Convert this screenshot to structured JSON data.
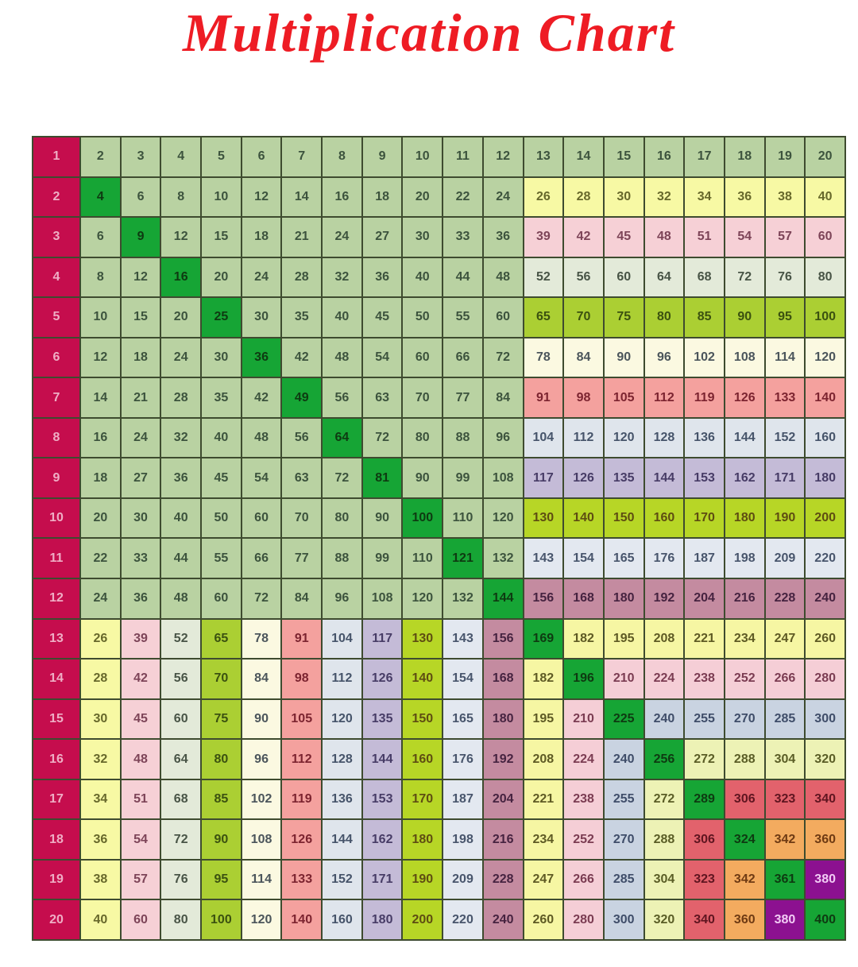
{
  "title_text": "Multiplication Chart",
  "chart_data": {
    "type": "table",
    "title": "Multiplication Chart",
    "description": "Multiplication grid; row header 1-20 in first column, products of row x column for factors 2-20",
    "col_factors": [
      2,
      3,
      4,
      5,
      6,
      7,
      8,
      9,
      10,
      11,
      12,
      13,
      14,
      15,
      16,
      17,
      18,
      19,
      20
    ],
    "rows": [
      {
        "label": 1,
        "values": [
          2,
          3,
          4,
          5,
          6,
          7,
          8,
          9,
          10,
          11,
          12,
          13,
          14,
          15,
          16,
          17,
          18,
          19,
          20
        ]
      },
      {
        "label": 2,
        "values": [
          4,
          6,
          8,
          10,
          12,
          14,
          16,
          18,
          20,
          22,
          24,
          26,
          28,
          30,
          32,
          34,
          36,
          38,
          40
        ]
      },
      {
        "label": 3,
        "values": [
          6,
          9,
          12,
          15,
          18,
          21,
          24,
          27,
          30,
          33,
          36,
          39,
          42,
          45,
          48,
          51,
          54,
          57,
          60
        ]
      },
      {
        "label": 4,
        "values": [
          8,
          12,
          16,
          20,
          24,
          28,
          32,
          36,
          40,
          44,
          48,
          52,
          56,
          60,
          64,
          68,
          72,
          76,
          80
        ]
      },
      {
        "label": 5,
        "values": [
          10,
          15,
          20,
          25,
          30,
          35,
          40,
          45,
          50,
          55,
          60,
          65,
          70,
          75,
          80,
          85,
          90,
          95,
          100
        ]
      },
      {
        "label": 6,
        "values": [
          12,
          18,
          24,
          30,
          36,
          42,
          48,
          54,
          60,
          66,
          72,
          78,
          84,
          90,
          96,
          102,
          108,
          114,
          120
        ]
      },
      {
        "label": 7,
        "values": [
          14,
          21,
          28,
          35,
          42,
          49,
          56,
          63,
          70,
          77,
          84,
          91,
          98,
          105,
          112,
          119,
          126,
          133,
          140
        ]
      },
      {
        "label": 8,
        "values": [
          16,
          24,
          32,
          40,
          48,
          56,
          64,
          72,
          80,
          88,
          96,
          104,
          112,
          120,
          128,
          136,
          144,
          152,
          160
        ]
      },
      {
        "label": 9,
        "values": [
          18,
          27,
          36,
          45,
          54,
          63,
          72,
          81,
          90,
          99,
          108,
          117,
          126,
          135,
          144,
          153,
          162,
          171,
          180
        ]
      },
      {
        "label": 10,
        "values": [
          20,
          30,
          40,
          50,
          60,
          70,
          80,
          90,
          100,
          110,
          120,
          130,
          140,
          150,
          160,
          170,
          180,
          190,
          200
        ]
      },
      {
        "label": 11,
        "values": [
          22,
          33,
          44,
          55,
          66,
          77,
          88,
          99,
          110,
          121,
          132,
          143,
          154,
          165,
          176,
          187,
          198,
          209,
          220
        ]
      },
      {
        "label": 12,
        "values": [
          24,
          36,
          48,
          60,
          72,
          84,
          96,
          108,
          120,
          132,
          144,
          156,
          168,
          180,
          192,
          204,
          216,
          228,
          240
        ]
      },
      {
        "label": 13,
        "values": [
          26,
          39,
          52,
          65,
          78,
          91,
          104,
          117,
          130,
          143,
          156,
          169,
          182,
          195,
          208,
          221,
          234,
          247,
          260
        ]
      },
      {
        "label": 14,
        "values": [
          28,
          42,
          56,
          70,
          84,
          98,
          112,
          126,
          140,
          154,
          168,
          182,
          196,
          210,
          224,
          238,
          252,
          266,
          280
        ]
      },
      {
        "label": 15,
        "values": [
          30,
          45,
          60,
          75,
          90,
          105,
          120,
          135,
          150,
          165,
          180,
          195,
          210,
          225,
          240,
          255,
          270,
          285,
          300
        ]
      },
      {
        "label": 16,
        "values": [
          32,
          48,
          64,
          80,
          96,
          112,
          128,
          144,
          160,
          176,
          192,
          208,
          224,
          240,
          256,
          272,
          288,
          304,
          320
        ]
      },
      {
        "label": 17,
        "values": [
          34,
          51,
          68,
          85,
          102,
          119,
          136,
          153,
          170,
          187,
          204,
          221,
          238,
          255,
          272,
          289,
          306,
          323,
          340
        ]
      },
      {
        "label": 18,
        "values": [
          36,
          54,
          72,
          90,
          108,
          126,
          144,
          162,
          180,
          198,
          216,
          234,
          252,
          270,
          288,
          306,
          324,
          342,
          360
        ]
      },
      {
        "label": 19,
        "values": [
          38,
          57,
          76,
          95,
          114,
          133,
          152,
          171,
          190,
          209,
          228,
          247,
          266,
          285,
          304,
          323,
          342,
          361,
          380
        ]
      },
      {
        "label": 20,
        "values": [
          40,
          60,
          80,
          100,
          120,
          140,
          160,
          180,
          200,
          220,
          240,
          260,
          280,
          300,
          320,
          340,
          360,
          380,
          400
        ]
      }
    ]
  },
  "colors": {
    "page_bg": "#ffffff",
    "title": "#ee1c24",
    "grid_border": "#3e4b2f",
    "header_bg": "#c50d4d",
    "header_text": "#efaec5",
    "sage_bg": "#b9d2a2",
    "sage_text": "#3c533d",
    "diagonal_bg": "#16a535",
    "diagonal_text": "#0e3a11",
    "purple_bg": "#8c1190",
    "purple_text": "#f2ccf5",
    "bands": {
      "2": {
        "bg": "#f7f9a4",
        "text": "#67682b"
      },
      "3": {
        "bg": "#f6d0d6",
        "text": "#7d4458"
      },
      "4": {
        "bg": "#e3ead9",
        "text": "#485446"
      },
      "5": {
        "bg": "#abcf33",
        "text": "#3b5110"
      },
      "6": {
        "bg": "#fbf9e1",
        "text": "#4b555b"
      },
      "7": {
        "bg": "#f4a19e",
        "text": "#7c2430"
      },
      "8": {
        "bg": "#dfe5ec",
        "text": "#46546a"
      },
      "9": {
        "bg": "#c4bbd7",
        "text": "#473c66"
      },
      "10": {
        "bg": "#b7d626",
        "text": "#5e4d12"
      },
      "11": {
        "bg": "#e3e8f0",
        "text": "#48556c"
      },
      "12": {
        "bg": "#c48ba0",
        "text": "#462340"
      },
      "13": {
        "bg": "#f6f6a3",
        "text": "#5e5a24"
      },
      "14": {
        "bg": "#f5ced6",
        "text": "#7b3c52"
      },
      "15": {
        "bg": "#c9d3e1",
        "text": "#3f4d69"
      },
      "16": {
        "bg": "#edf2b5",
        "text": "#5a5d26"
      },
      "17": {
        "bg": "#e2626c",
        "text": "#5f1520"
      },
      "18": {
        "bg": "#f3ab5f",
        "text": "#6e3a13"
      }
    }
  }
}
